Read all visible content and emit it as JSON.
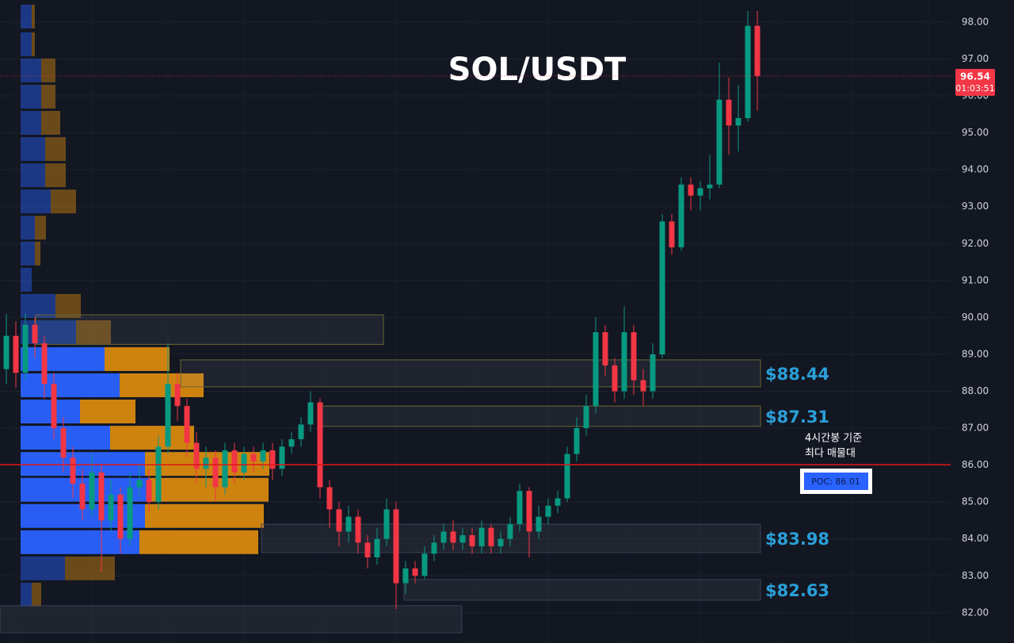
{
  "chart_data": {
    "type": "candlestick",
    "title": "SOL/USDT",
    "ylim": [
      81.18,
      98.6
    ],
    "yticks": [
      {
        "value": 82,
        "label": "82.00"
      },
      {
        "value": 83,
        "label": "83.00"
      },
      {
        "value": 84,
        "label": "84.00"
      },
      {
        "value": 85,
        "label": "85.00"
      },
      {
        "value": 86,
        "label": "86.00"
      },
      {
        "value": 87,
        "label": "87.00"
      },
      {
        "value": 88,
        "label": "88.00"
      },
      {
        "value": 89,
        "label": "89.00"
      },
      {
        "value": 90,
        "label": "90.00"
      },
      {
        "value": 91,
        "label": "91.00"
      },
      {
        "value": 92,
        "label": "92.00"
      },
      {
        "value": 93,
        "label": "93.00"
      },
      {
        "value": 94,
        "label": "94.00"
      },
      {
        "value": 95,
        "label": "95.00"
      },
      {
        "value": 96,
        "label": "96.00"
      },
      {
        "value": 97,
        "label": "97.00"
      },
      {
        "value": 98,
        "label": "98.00"
      }
    ],
    "grid": true,
    "up_color": "#089981",
    "down_color": "#f23645",
    "open": [
      88.6,
      89.5,
      88.5,
      89.8,
      89.3,
      88.2,
      87.0,
      86.2,
      85.5,
      84.8,
      85.8,
      84.5,
      85.2,
      84.0,
      85.4,
      85.6,
      85.0,
      86.5,
      88.2,
      87.6,
      86.6,
      85.9,
      86.2,
      85.4,
      86.4,
      85.8,
      86.3,
      86.1,
      86.4,
      85.9,
      86.5,
      86.7,
      87.1,
      87.7,
      85.4,
      84.8,
      84.2,
      84.6,
      83.9,
      83.5,
      84.0,
      84.8,
      82.8,
      83.2,
      83.0,
      83.6,
      83.9,
      84.2,
      83.9,
      84.1,
      83.8,
      84.3,
      83.8,
      84.0,
      84.4,
      85.3,
      84.2,
      84.6,
      84.9,
      85.1,
      86.3,
      87.0,
      87.6,
      89.6,
      88.7,
      88.0,
      89.6,
      88.3,
      88.0,
      89.0,
      92.6,
      91.9,
      93.6,
      93.3,
      93.5,
      93.6,
      95.9,
      95.2,
      95.4,
      97.9
    ],
    "high": [
      90.1,
      89.9,
      90.1,
      90.0,
      89.5,
      88.5,
      87.3,
      86.5,
      85.9,
      86.3,
      86.0,
      85.6,
      85.4,
      85.8,
      86.0,
      85.9,
      86.8,
      89.3,
      88.5,
      87.8,
      86.9,
      86.5,
      86.4,
      86.6,
      86.6,
      86.5,
      86.5,
      86.6,
      86.6,
      86.7,
      86.9,
      87.3,
      88.0,
      87.8,
      85.6,
      85.0,
      84.9,
      84.8,
      84.1,
      84.3,
      85.1,
      85.0,
      83.4,
      83.4,
      83.8,
      84.1,
      84.4,
      84.5,
      84.3,
      84.3,
      84.5,
      84.4,
      84.2,
      84.6,
      85.5,
      85.4,
      84.9,
      85.1,
      85.3,
      86.5,
      87.3,
      87.9,
      90.0,
      89.8,
      88.9,
      90.3,
      89.8,
      88.6,
      89.3,
      92.8,
      92.8,
      93.8,
      93.8,
      93.7,
      94.4,
      96.9,
      96.5,
      96.3,
      98.3,
      98.3
    ],
    "low": [
      88.2,
      88.1,
      88.3,
      88.9,
      87.8,
      86.7,
      85.8,
      85.1,
      84.5,
      84.6,
      83.1,
      84.2,
      83.6,
      83.8,
      85.1,
      84.7,
      84.8,
      86.3,
      87.2,
      86.2,
      85.5,
      85.4,
      85.0,
      85.2,
      85.5,
      85.6,
      85.8,
      85.9,
      85.6,
      85.7,
      86.3,
      86.5,
      86.9,
      85.1,
      84.3,
      83.8,
      83.9,
      83.6,
      83.2,
      83.3,
      83.8,
      82.1,
      82.5,
      82.8,
      82.9,
      83.4,
      83.7,
      83.7,
      83.7,
      83.6,
      83.6,
      83.6,
      83.6,
      83.8,
      84.2,
      83.5,
      84.0,
      84.4,
      84.7,
      85.0,
      86.1,
      86.8,
      87.4,
      88.4,
      87.7,
      87.8,
      87.9,
      87.6,
      87.8,
      88.9,
      91.7,
      91.8,
      92.9,
      92.9,
      93.2,
      93.5,
      94.4,
      94.5,
      95.3,
      95.6
    ],
    "close": [
      89.5,
      88.5,
      89.8,
      89.3,
      88.2,
      87.0,
      86.2,
      85.5,
      84.8,
      85.8,
      84.5,
      85.2,
      84.0,
      85.4,
      85.6,
      85.0,
      86.5,
      88.2,
      87.6,
      86.6,
      85.9,
      86.2,
      85.4,
      86.4,
      85.8,
      86.3,
      86.1,
      86.4,
      85.9,
      86.5,
      86.7,
      87.1,
      87.7,
      85.4,
      84.8,
      84.2,
      84.6,
      83.9,
      83.5,
      84.0,
      84.8,
      82.8,
      83.2,
      83.0,
      83.6,
      83.9,
      84.2,
      83.9,
      84.1,
      83.8,
      84.3,
      83.8,
      84.0,
      84.4,
      85.3,
      84.2,
      84.6,
      84.9,
      85.1,
      86.3,
      87.0,
      87.6,
      89.6,
      88.7,
      88.0,
      89.6,
      88.3,
      88.0,
      89.0,
      92.6,
      91.9,
      93.6,
      93.3,
      93.5,
      93.6,
      95.9,
      95.2,
      95.4,
      97.9,
      96.54
    ],
    "countdown": "01:03:51",
    "volume_profile": {
      "prices": [
        98.13,
        97.38,
        96.67,
        95.96,
        95.25,
        94.54,
        93.83,
        93.12,
        92.41,
        91.71,
        91.0,
        90.29,
        89.58,
        88.85,
        88.14,
        87.43,
        86.72,
        86.01,
        85.31,
        84.6,
        83.89,
        83.18,
        82.47
      ],
      "buy": [
        14,
        14,
        26,
        26,
        26,
        31,
        31,
        38,
        18,
        18,
        14,
        44,
        70,
        106,
        125,
        75,
        113,
        157,
        163,
        157,
        150,
        56,
        14
      ],
      "sell": [
        4,
        4,
        18,
        18,
        24,
        26,
        26,
        32,
        14,
        7,
        0,
        32,
        44,
        82,
        106,
        70,
        106,
        157,
        150,
        150,
        150,
        63,
        12
      ]
    },
    "zones": [
      {
        "low": 89.27,
        "high": 90.07
      },
      {
        "label": "$88.44",
        "low": 88.12,
        "high": 88.85
      },
      {
        "label": "$87.31",
        "low": 87.05,
        "high": 87.6
      },
      {
        "label": "$83.98",
        "low": 83.63,
        "high": 84.4
      },
      {
        "label": "$82.63",
        "low": 82.34,
        "high": 82.9
      },
      {
        "low": 81.46,
        "high": 82.19
      }
    ],
    "poc": {
      "value": 86.01,
      "label": "POC: 86.01",
      "note": [
        "4시간봉 기준",
        "최다 매물대"
      ],
      "color": "#e01515"
    }
  }
}
